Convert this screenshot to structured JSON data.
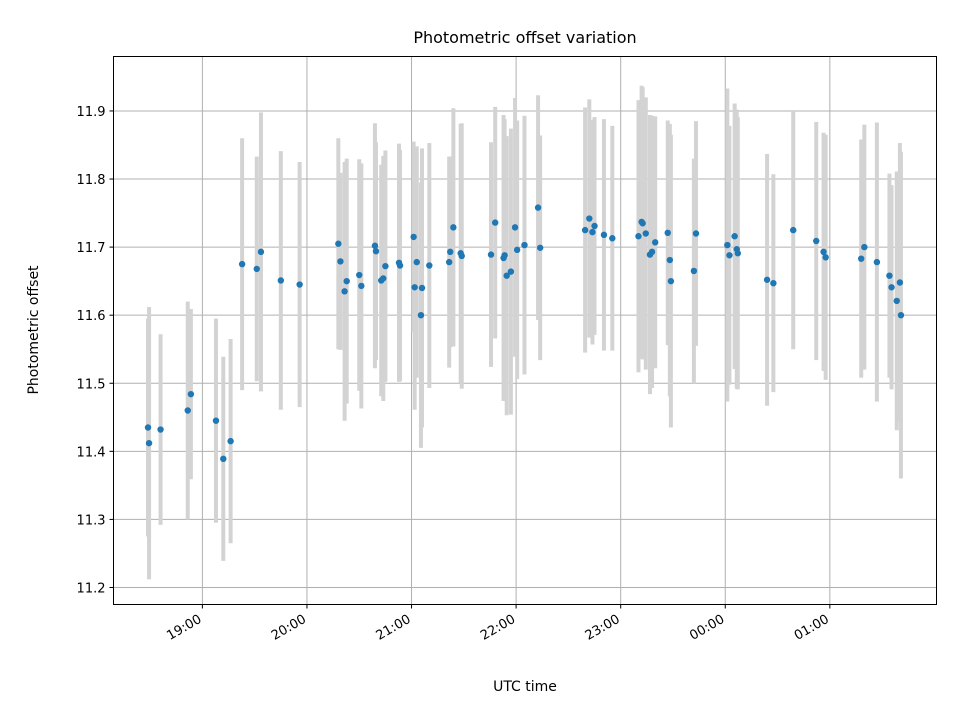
{
  "chart_data": {
    "type": "scatter",
    "title": "Photometric offset variation",
    "xlabel": "UTC time",
    "ylabel": "Photometric offset",
    "grid": true,
    "x_tick_labels": [
      "19:00",
      "20:00",
      "21:00",
      "22:00",
      "23:00",
      "00:00",
      "01:00"
    ],
    "x_tick_hours": [
      19,
      20,
      21,
      22,
      23,
      24,
      25
    ],
    "xlim_hours": [
      18.15,
      26.02
    ],
    "y_tick_labels": [
      "11.2",
      "11.3",
      "11.4",
      "11.5",
      "11.6",
      "11.7",
      "11.8",
      "11.9"
    ],
    "y_ticks": [
      11.2,
      11.3,
      11.4,
      11.5,
      11.6,
      11.7,
      11.8,
      11.9
    ],
    "ylim": [
      11.175,
      11.98
    ],
    "colors": {
      "points": "#1f77b4",
      "errorbars": "#d3d3d3",
      "grid": "#b0b0b0"
    },
    "series": [
      {
        "marker": "point",
        "x_hours": [
          18.48,
          18.49,
          18.6,
          18.86,
          18.89,
          19.13,
          19.2,
          19.27,
          19.38,
          19.52,
          19.56,
          19.75,
          19.93,
          20.3,
          20.32,
          20.36,
          20.38,
          20.5,
          20.52,
          20.65,
          20.66,
          20.71,
          20.73,
          20.75,
          20.88,
          20.89,
          21.02,
          21.03,
          21.05,
          21.09,
          21.1,
          21.17,
          21.36,
          21.37,
          21.4,
          21.47,
          21.48,
          21.76,
          21.8,
          21.88,
          21.89,
          21.91,
          21.95,
          21.99,
          22.01,
          22.08,
          22.21,
          22.23,
          22.66,
          22.7,
          22.73,
          22.75,
          22.84,
          22.92,
          23.17,
          23.2,
          23.21,
          23.24,
          23.28,
          23.3,
          23.33,
          23.45,
          23.47,
          23.48,
          23.7,
          23.72,
          24.02,
          24.04,
          24.09,
          24.11,
          24.12,
          24.4,
          24.46,
          24.65,
          24.87,
          24.94,
          24.96,
          25.3,
          25.33,
          25.45,
          25.57,
          25.59,
          25.64,
          25.67,
          25.68
        ],
        "y": [
          11.435,
          11.412,
          11.432,
          11.46,
          11.484,
          11.445,
          11.389,
          11.415,
          11.675,
          11.668,
          11.693,
          11.651,
          11.645,
          11.705,
          11.679,
          11.635,
          11.65,
          11.659,
          11.643,
          11.702,
          11.694,
          11.651,
          11.654,
          11.672,
          11.677,
          11.673,
          11.715,
          11.641,
          11.678,
          11.6,
          11.64,
          11.673,
          11.678,
          11.693,
          11.729,
          11.691,
          11.687,
          11.689,
          11.736,
          11.684,
          11.688,
          11.658,
          11.664,
          11.729,
          11.696,
          11.703,
          11.758,
          11.699,
          11.725,
          11.742,
          11.722,
          11.731,
          11.718,
          11.713,
          11.716,
          11.737,
          11.735,
          11.72,
          11.689,
          11.693,
          11.707,
          11.721,
          11.681,
          11.65,
          11.665,
          11.72,
          11.703,
          11.688,
          11.716,
          11.697,
          11.691,
          11.652,
          11.647,
          11.725,
          11.709,
          11.693,
          11.685,
          11.683,
          11.7,
          11.678,
          11.658,
          11.641,
          11.621,
          11.648,
          11.6
        ],
        "yerr": [
          0.16,
          0.2,
          0.14,
          0.16,
          0.125,
          0.15,
          0.15,
          0.15,
          0.185,
          0.165,
          0.205,
          0.19,
          0.18,
          0.155,
          0.13,
          0.19,
          0.18,
          0.17,
          0.18,
          0.18,
          0.16,
          0.17,
          0.18,
          0.17,
          0.175,
          0.17,
          0.14,
          0.18,
          0.17,
          0.195,
          0.205,
          0.18,
          0.155,
          0.14,
          0.175,
          0.19,
          0.195,
          0.165,
          0.17,
          0.21,
          0.2,
          0.205,
          0.21,
          0.19,
          0.19,
          0.19,
          0.165,
          0.165,
          0.18,
          0.175,
          0.165,
          0.16,
          0.17,
          0.165,
          0.2,
          0.2,
          0.2,
          0.2,
          0.205,
          0.2,
          0.185,
          0.165,
          0.2,
          0.215,
          0.165,
          0.165,
          0.23,
          0.19,
          0.195,
          0.205,
          0.2,
          0.185,
          0.16,
          0.175,
          0.175,
          0.175,
          0.18,
          0.175,
          0.18,
          0.205,
          0.15,
          0.15,
          0.19,
          0.205,
          0.24
        ]
      }
    ]
  }
}
